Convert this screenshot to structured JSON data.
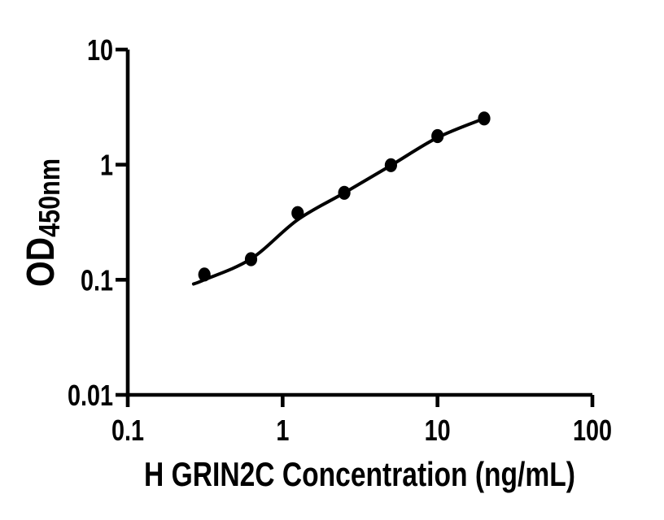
{
  "chart_data": {
    "type": "scatter",
    "title": "",
    "xlabel": "H GRIN2C Concentration (ng/mL)",
    "ylabel": "OD450nm",
    "ylabel_main": "OD",
    "ylabel_sub": "450nm",
    "x_scale": "log",
    "y_scale": "log",
    "xlim": [
      0.1,
      100
    ],
    "ylim": [
      0.01,
      10
    ],
    "grid": false,
    "legend": false,
    "x_ticks": [
      {
        "v": 0.1,
        "label": "0.1"
      },
      {
        "v": 1,
        "label": "1"
      },
      {
        "v": 10,
        "label": "10"
      },
      {
        "v": 100,
        "label": "100"
      }
    ],
    "y_ticks": [
      {
        "v": 0.01,
        "label": "0.01"
      },
      {
        "v": 0.1,
        "label": "0.1"
      },
      {
        "v": 1,
        "label": "1"
      },
      {
        "v": 10,
        "label": "10"
      }
    ],
    "series": [
      {
        "marker": "filled-circle",
        "color": "#000000",
        "points": [
          {
            "x": 0.3125,
            "y": 0.111
          },
          {
            "x": 0.625,
            "y": 0.151
          },
          {
            "x": 1.25,
            "y": 0.38
          },
          {
            "x": 2.5,
            "y": 0.57
          },
          {
            "x": 5,
            "y": 0.99
          },
          {
            "x": 10,
            "y": 1.77
          },
          {
            "x": 20,
            "y": 2.52
          }
        ]
      }
    ],
    "fit_curve": [
      {
        "x": 0.266,
        "y": 0.092
      },
      {
        "x": 0.3125,
        "y": 0.1
      },
      {
        "x": 0.625,
        "y": 0.152
      },
      {
        "x": 1.25,
        "y": 0.332
      },
      {
        "x": 2.5,
        "y": 0.569
      },
      {
        "x": 5,
        "y": 0.985
      },
      {
        "x": 10,
        "y": 1.72
      },
      {
        "x": 20,
        "y": 2.52
      }
    ],
    "colors": {
      "axis": "#000000",
      "points": "#000000",
      "curve": "#000000",
      "background": "#ffffff"
    }
  }
}
